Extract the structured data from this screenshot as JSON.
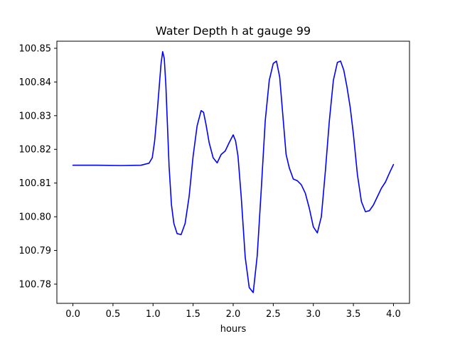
{
  "chart_data": {
    "type": "line",
    "title": "Water Depth h at gauge 99",
    "xlabel": "hours",
    "ylabel": "",
    "xlim": [
      -0.2,
      4.2
    ],
    "ylim": [
      100.7743,
      100.8521
    ],
    "xticks": [
      0.0,
      0.5,
      1.0,
      1.5,
      2.0,
      2.5,
      3.0,
      3.5,
      4.0
    ],
    "xtick_labels": [
      "0.0",
      "0.5",
      "1.0",
      "1.5",
      "2.0",
      "2.5",
      "3.0",
      "3.5",
      "4.0"
    ],
    "yticks": [
      100.78,
      100.79,
      100.8,
      100.81,
      100.82,
      100.83,
      100.84,
      100.85
    ],
    "ytick_labels": [
      "100.78",
      "100.79",
      "100.80",
      "100.81",
      "100.82",
      "100.83",
      "100.84",
      "100.85"
    ],
    "grid": false,
    "series": [
      {
        "color": "#0000ff",
        "x": [
          0.0,
          0.3,
          0.6,
          0.85,
          0.95,
          0.99,
          1.02,
          1.05,
          1.08,
          1.1,
          1.12,
          1.14,
          1.16,
          1.18,
          1.2,
          1.23,
          1.26,
          1.3,
          1.35,
          1.4,
          1.45,
          1.5,
          1.55,
          1.6,
          1.63,
          1.66,
          1.7,
          1.75,
          1.8,
          1.85,
          1.9,
          1.95,
          2.0,
          2.03,
          2.06,
          2.1,
          2.15,
          2.2,
          2.25,
          2.3,
          2.35,
          2.4,
          2.45,
          2.5,
          2.54,
          2.58,
          2.62,
          2.66,
          2.7,
          2.75,
          2.8,
          2.85,
          2.9,
          2.95,
          3.0,
          3.05,
          3.1,
          3.15,
          3.2,
          3.25,
          3.3,
          3.34,
          3.38,
          3.42,
          3.46,
          3.5,
          3.55,
          3.6,
          3.65,
          3.7,
          3.75,
          3.8,
          3.85,
          3.9,
          3.95,
          4.0
        ],
        "y": [
          100.8153,
          100.8153,
          100.8152,
          100.8153,
          100.8159,
          100.8175,
          100.8225,
          100.8305,
          100.8395,
          100.8455,
          100.849,
          100.847,
          100.839,
          100.827,
          100.815,
          100.8035,
          100.798,
          100.795,
          100.7947,
          100.798,
          100.806,
          100.818,
          100.827,
          100.8315,
          100.831,
          100.8275,
          100.822,
          100.8175,
          100.816,
          100.8185,
          100.8195,
          100.822,
          100.8243,
          100.8225,
          100.818,
          100.806,
          100.788,
          100.779,
          100.7775,
          100.7885,
          100.808,
          100.8285,
          100.8405,
          100.8455,
          100.8462,
          100.8415,
          100.83,
          100.8185,
          100.8145,
          100.8112,
          100.8107,
          100.8095,
          100.807,
          100.8025,
          100.797,
          100.7952,
          100.8,
          100.8135,
          100.8285,
          100.8405,
          100.8458,
          100.8462,
          100.8435,
          100.8385,
          100.8325,
          100.8245,
          100.8125,
          100.8045,
          100.8015,
          100.8018,
          100.8035,
          100.806,
          100.8085,
          100.8103,
          100.813,
          100.8155
        ]
      }
    ]
  }
}
